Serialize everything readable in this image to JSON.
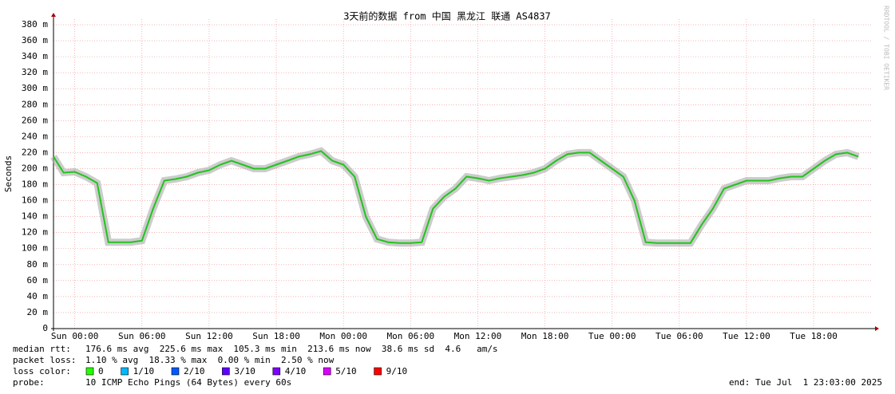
{
  "chart_data": {
    "type": "line",
    "title": "3天前的数据 from 中国 黑龙江 联通 AS4837",
    "y_label": "Seconds",
    "watermark": "RRDTOOL / TOBI OETIKER",
    "x": [
      -1.9,
      -1,
      0,
      1,
      2,
      3,
      4,
      5,
      6,
      7,
      8,
      9,
      10,
      11,
      12,
      13,
      14,
      15,
      16,
      17,
      18,
      19,
      20,
      21,
      22,
      23,
      24,
      25,
      26,
      27,
      28,
      29,
      30,
      31,
      32,
      33,
      34,
      35,
      36,
      37,
      38,
      39,
      40,
      41,
      42,
      43,
      44,
      45,
      46,
      47,
      48,
      49,
      50,
      51,
      52,
      53,
      54,
      55,
      56,
      57,
      58,
      59,
      60,
      61,
      62,
      63,
      64,
      65,
      66,
      67,
      68,
      69,
      70
    ],
    "values": [
      215,
      195,
      196,
      190,
      182,
      108,
      108,
      108,
      110,
      150,
      185,
      187,
      190,
      195,
      198,
      205,
      210,
      205,
      200,
      200,
      205,
      210,
      215,
      218,
      222,
      210,
      205,
      190,
      140,
      112,
      108,
      107,
      107,
      108,
      150,
      165,
      175,
      190,
      188,
      185,
      188,
      190,
      192,
      195,
      200,
      210,
      218,
      220,
      220,
      210,
      200,
      190,
      160,
      108,
      107,
      107,
      107,
      107,
      130,
      150,
      175,
      180,
      185,
      185,
      185,
      188,
      190,
      190,
      200,
      210,
      218,
      220,
      215
    ],
    "color": "#22c41c",
    "xlim": [
      -1.9,
      71.2
    ],
    "xticks": [
      {
        "value": 0,
        "label": "Sun 00:00"
      },
      {
        "value": 6,
        "label": "Sun 06:00"
      },
      {
        "value": 12,
        "label": "Sun 12:00"
      },
      {
        "value": 18,
        "label": "Sun 18:00"
      },
      {
        "value": 24,
        "label": "Mon 00:00"
      },
      {
        "value": 30,
        "label": "Mon 06:00"
      },
      {
        "value": 36,
        "label": "Mon 12:00"
      },
      {
        "value": 42,
        "label": "Mon 18:00"
      },
      {
        "value": 48,
        "label": "Tue 00:00"
      },
      {
        "value": 54,
        "label": "Tue 06:00"
      },
      {
        "value": 60,
        "label": "Tue 12:00"
      },
      {
        "value": 66,
        "label": "Tue 18:00"
      }
    ],
    "ylim": [
      0,
      387
    ],
    "yticks": [
      0,
      {
        "value": 20,
        "label": "20 m"
      },
      {
        "value": 40,
        "label": "40 m"
      },
      {
        "value": 60,
        "label": "60 m"
      },
      {
        "value": 80,
        "label": "80 m"
      },
      {
        "value": 100,
        "label": "100 m"
      },
      {
        "value": 120,
        "label": "120 m"
      },
      {
        "value": 140,
        "label": "140 m"
      },
      {
        "value": 160,
        "label": "160 m"
      },
      {
        "value": 180,
        "label": "180 m"
      },
      {
        "value": 200,
        "label": "200 m"
      },
      {
        "value": 220,
        "label": "220 m"
      },
      {
        "value": 240,
        "label": "240 m"
      },
      {
        "value": 260,
        "label": "260 m"
      },
      {
        "value": 280,
        "label": "280 m"
      },
      {
        "value": 300,
        "label": "300 m"
      },
      {
        "value": 320,
        "label": "320 m"
      },
      {
        "value": 340,
        "label": "340 m"
      },
      {
        "value": 360,
        "label": "360 m"
      },
      {
        "value": 380,
        "label": "380 m"
      }
    ],
    "grid": true
  },
  "stats": [
    {
      "label": "median rtt:",
      "text": "176.6 ms avg  225.6 ms max  105.3 ms min  213.6 ms now  38.6 ms sd  4.6   am/s"
    },
    {
      "label": "packet loss:",
      "text": "1.10 % avg  18.33 % max  0.00 % min  2.50 % now"
    }
  ],
  "loss_colors": {
    "label": "loss color:",
    "items": [
      {
        "label": "0",
        "color": "#26ff00"
      },
      {
        "label": "1/10",
        "color": "#00b8ff"
      },
      {
        "label": "2/10",
        "color": "#0059ff"
      },
      {
        "label": "3/10",
        "color": "#5e00ff"
      },
      {
        "label": "4/10",
        "color": "#7e00ff"
      },
      {
        "label": "5/10",
        "color": "#dd00ff"
      },
      {
        "label": "9/10",
        "color": "#ff0000"
      }
    ]
  },
  "probe": {
    "label": "probe:",
    "text": "10 ICMP Echo Pings (64 Bytes) every 60s"
  },
  "end": "end: Tue Jul  1 23:03:00 2025"
}
